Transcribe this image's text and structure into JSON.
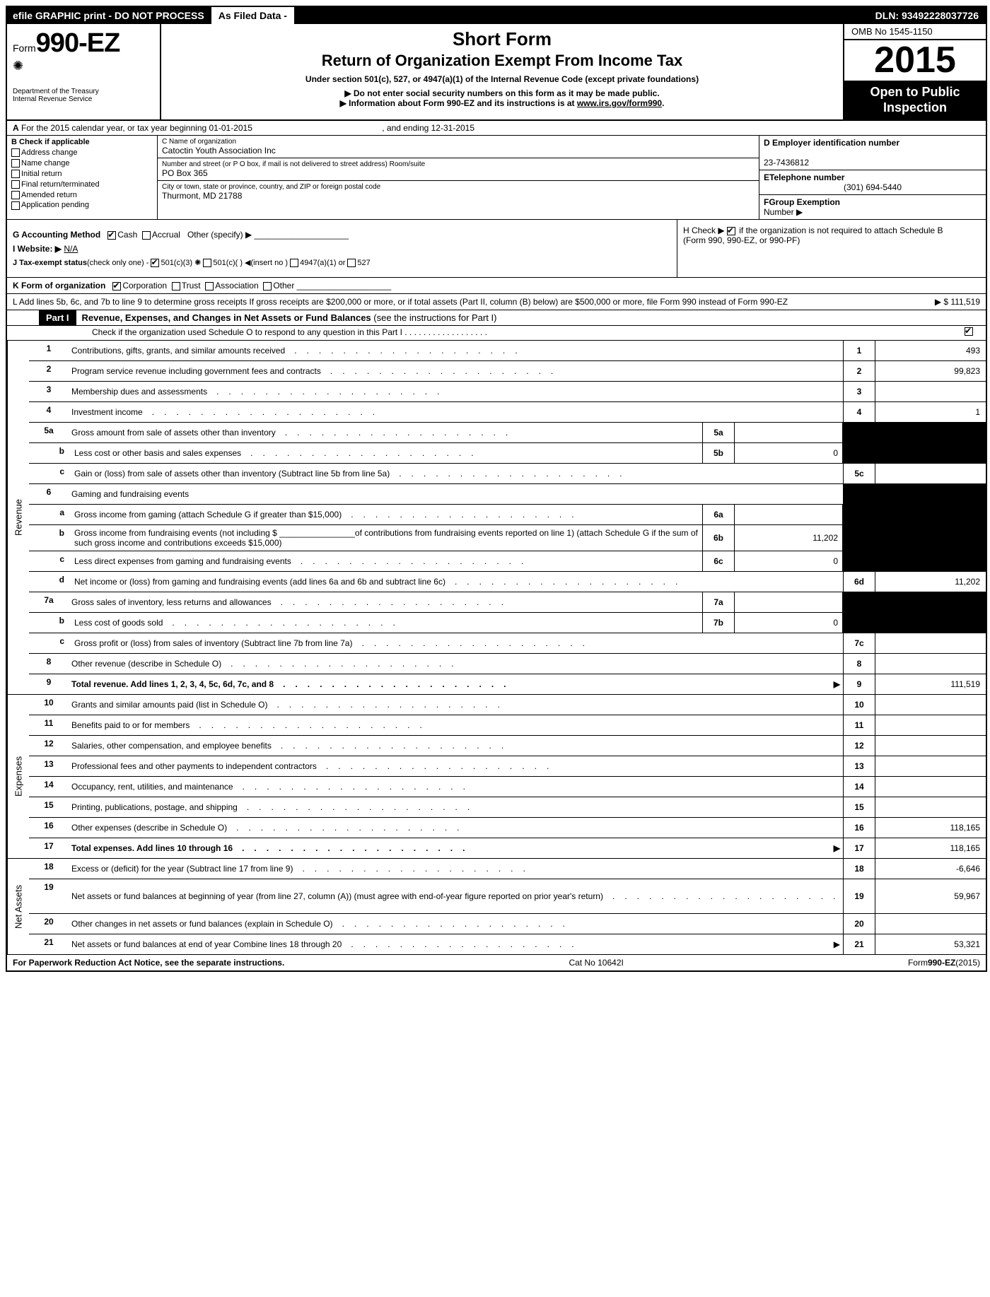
{
  "topbar": {
    "left": "efile GRAPHIC print - DO NOT PROCESS",
    "mid": "As Filed Data -",
    "right": "DLN: 93492228037726"
  },
  "header": {
    "form_prefix": "Form",
    "form_number": "990-EZ",
    "dept1": "Department of the Treasury",
    "dept2": "Internal Revenue Service",
    "title1": "Short Form",
    "title2": "Return of Organization Exempt From Income Tax",
    "sub": "Under section 501(c), 527, or 4947(a)(1) of the Internal Revenue Code (except private foundations)",
    "note1": "▶ Do not enter social security numbers on this form as it may be made public.",
    "note2": "▶ Information about Form 990-EZ and its instructions is at ",
    "note2_link": "www.irs.gov/form990",
    "omb": "OMB No  1545-1150",
    "year": "2015",
    "open1": "Open to Public",
    "open2": "Inspection"
  },
  "row_a": {
    "label_a": "A",
    "text": " For the 2015 calendar year, or tax year beginning 01-01-2015",
    "ending": ", and ending 12-31-2015"
  },
  "col_b": {
    "title": "B Check if applicable",
    "items": [
      "Address change",
      "Name change",
      "Initial return",
      "Final return/terminated",
      "Amended return",
      "Application pending"
    ]
  },
  "col_c": {
    "name_label": "C Name of organization",
    "name": "Catoctin Youth Association Inc",
    "street_label": "Number and street (or P  O  box, if mail is not delivered to street address) Room/suite",
    "street": "PO Box 365",
    "city_label": "City or town, state or province, country, and ZIP or foreign postal code",
    "city": "Thurmont, MD  21788"
  },
  "col_de": {
    "d_label": "D Employer identification number",
    "d_value": "23-7436812",
    "e_label": "ETelephone number",
    "e_value": "(301) 694-5440",
    "f_label": "FGroup Exemption",
    "f_label2": "Number   ▶"
  },
  "g": {
    "label": "G Accounting Method",
    "cash": "Cash",
    "accrual": "Accrual",
    "other": "Other (specify) ▶"
  },
  "h": {
    "text1": "H  Check ▶",
    "text2": "if the organization is not required to attach Schedule B",
    "text3": "(Form 990, 990-EZ, or 990-PF)"
  },
  "i": {
    "label": "I Website: ▶",
    "value": "N/A"
  },
  "j": {
    "label": "J Tax-exempt status",
    "text": "(check only one) -",
    "opt1": "501(c)(3)",
    "opt2": "501(c)(  )",
    "opt2b": "◀(insert no )",
    "opt3": "4947(a)(1) or",
    "opt4": "527"
  },
  "k": {
    "label": "K Form of organization",
    "opts": [
      "Corporation",
      "Trust",
      "Association",
      "Other"
    ]
  },
  "l": {
    "text": "L Add lines 5b, 6c, and 7b to line 9 to determine gross receipts  If gross receipts are $200,000 or more, or if total assets (Part II, column (B) below) are $500,000 or more, file Form 990 instead of Form 990-EZ",
    "value": "▶ $ 111,519"
  },
  "part1": {
    "tag": "Part I",
    "title": "Revenue, Expenses, and Changes in Net Assets or Fund Balances",
    "title_paren": " (see the instructions for Part I)",
    "sub": "Check if the organization used Schedule O to respond to any question in this Part I  .  .  .  .  .  .  .  .  .  .  .  .  .  .  .  .  .  ."
  },
  "sections": {
    "revenue": "Revenue",
    "expenses": "Expenses",
    "netassets": "Net Assets"
  },
  "lines": {
    "l1": {
      "n": "1",
      "d": "Contributions, gifts, grants, and similar amounts received",
      "rb": "1",
      "rv": "493"
    },
    "l2": {
      "n": "2",
      "d": "Program service revenue including government fees and contracts",
      "rb": "2",
      "rv": "99,823"
    },
    "l3": {
      "n": "3",
      "d": "Membership dues and assessments",
      "rb": "3",
      "rv": ""
    },
    "l4": {
      "n": "4",
      "d": "Investment income",
      "rb": "4",
      "rv": "1"
    },
    "l5a": {
      "n": "5a",
      "d": "Gross amount from sale of assets other than inventory",
      "mb": "5a",
      "mv": ""
    },
    "l5b": {
      "n": "b",
      "d": "Less  cost or other basis and sales expenses",
      "mb": "5b",
      "mv": "0"
    },
    "l5c": {
      "n": "c",
      "d": "Gain or (loss) from sale of assets other than inventory (Subtract line 5b from line 5a)",
      "rb": "5c",
      "rv": ""
    },
    "l6": {
      "n": "6",
      "d": "Gaming and fundraising events"
    },
    "l6a": {
      "n": "a",
      "d": "Gross income from gaming (attach Schedule G if greater than $15,000)",
      "mb": "6a",
      "mv": ""
    },
    "l6b": {
      "n": "b",
      "d": "Gross income from fundraising events (not including $ ________________of contributions from fundraising events reported on line 1) (attach Schedule G if the sum of such gross income and contributions exceeds $15,000)",
      "mb": "6b",
      "mv": "11,202"
    },
    "l6c": {
      "n": "c",
      "d": "Less  direct expenses from gaming and fundraising events",
      "mb": "6c",
      "mv": "0"
    },
    "l6d": {
      "n": "d",
      "d": "Net income or (loss) from gaming and fundraising events (add lines 6a and 6b and subtract line 6c)",
      "rb": "6d",
      "rv": "11,202"
    },
    "l7a": {
      "n": "7a",
      "d": "Gross sales of inventory, less returns and allowances",
      "mb": "7a",
      "mv": ""
    },
    "l7b": {
      "n": "b",
      "d": "Less  cost of goods sold",
      "mb": "7b",
      "mv": "0"
    },
    "l7c": {
      "n": "c",
      "d": "Gross profit or (loss) from sales of inventory (Subtract line 7b from line 7a)",
      "rb": "7c",
      "rv": ""
    },
    "l8": {
      "n": "8",
      "d": "Other revenue (describe in Schedule O)",
      "rb": "8",
      "rv": ""
    },
    "l9": {
      "n": "9",
      "d": "Total revenue. Add lines 1, 2, 3, 4, 5c, 6d, 7c, and 8",
      "rb": "9",
      "rv": "111,519",
      "bold": true,
      "arrow": true
    },
    "l10": {
      "n": "10",
      "d": "Grants and similar amounts paid (list in Schedule O)",
      "rb": "10",
      "rv": ""
    },
    "l11": {
      "n": "11",
      "d": "Benefits paid to or for members",
      "rb": "11",
      "rv": ""
    },
    "l12": {
      "n": "12",
      "d": "Salaries, other compensation, and employee benefits",
      "rb": "12",
      "rv": ""
    },
    "l13": {
      "n": "13",
      "d": "Professional fees and other payments to independent contractors",
      "rb": "13",
      "rv": ""
    },
    "l14": {
      "n": "14",
      "d": "Occupancy, rent, utilities, and maintenance",
      "rb": "14",
      "rv": ""
    },
    "l15": {
      "n": "15",
      "d": "Printing, publications, postage, and shipping",
      "rb": "15",
      "rv": ""
    },
    "l16": {
      "n": "16",
      "d": "Other expenses (describe in Schedule O)",
      "rb": "16",
      "rv": "118,165"
    },
    "l17": {
      "n": "17",
      "d": "Total expenses. Add lines 10 through 16",
      "rb": "17",
      "rv": "118,165",
      "bold": true,
      "arrow": true
    },
    "l18": {
      "n": "18",
      "d": "Excess or (deficit) for the year (Subtract line 17 from line 9)",
      "rb": "18",
      "rv": "-6,646"
    },
    "l19": {
      "n": "19",
      "d": "Net assets or fund balances at beginning of year (from line 27, column (A)) (must agree with end-of-year figure reported on prior year's return)",
      "rb": "19",
      "rv": "59,967"
    },
    "l20": {
      "n": "20",
      "d": "Other changes in net assets or fund balances (explain in Schedule O)",
      "rb": "20",
      "rv": ""
    },
    "l21": {
      "n": "21",
      "d": "Net assets or fund balances at end of year  Combine lines 18 through 20",
      "rb": "21",
      "rv": "53,321",
      "arrow": true
    }
  },
  "footer": {
    "left": "For Paperwork Reduction Act Notice, see the separate instructions.",
    "mid": "Cat No  10642I",
    "right": "Form990-EZ(2015)"
  }
}
